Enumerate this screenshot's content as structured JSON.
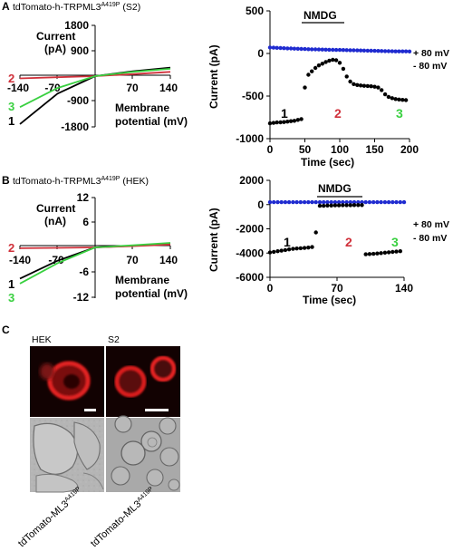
{
  "panels": {
    "A": {
      "letter": "A",
      "title_main": "tdTomato-h-TRPML3",
      "title_sup": "A419P",
      "title_suffix": " (S2)",
      "iv": {
        "ylabel1": "Current",
        "ylabel2": "(pA)",
        "xlabel1": "Membrane",
        "xlabel2": "potential (mV)",
        "yticks": [
          "1800",
          "900",
          "-900",
          "-1800"
        ],
        "xticks": [
          "-140",
          "-70",
          "70",
          "140"
        ],
        "trace_labels": [
          "2",
          "3",
          "1"
        ]
      },
      "time": {
        "ylabel": "Current (pA)",
        "xlabel": "Time (sec)",
        "yticks": [
          "500",
          "0",
          "-500",
          "-1000"
        ],
        "xticks": [
          "0",
          "50",
          "100",
          "150",
          "200"
        ],
        "nmdg": "NMDG",
        "pos_label": "+ 80 mV",
        "neg_label": "- 80 mV",
        "point_labels": [
          "1",
          "2",
          "3"
        ]
      }
    },
    "B": {
      "letter": "B",
      "title_main": "tdTomato-h-TRPML3",
      "title_sup": "A419P",
      "title_suffix": " (HEK)",
      "iv": {
        "ylabel1": "Current",
        "ylabel2": "(nA)",
        "xlabel1": "Membrane",
        "xlabel2": "potential (mV)",
        "yticks": [
          "12",
          "6",
          "-6",
          "-12"
        ],
        "xticks": [
          "-140",
          "-70",
          "70",
          "140"
        ],
        "trace_labels": [
          "2",
          "1",
          "3"
        ]
      },
      "time": {
        "ylabel": "Current (pA)",
        "xlabel": "Time (sec)",
        "yticks": [
          "2000",
          "0",
          "-2000",
          "-4000",
          "-6000"
        ],
        "xticks": [
          "0",
          "70",
          "140"
        ],
        "nmdg": "NMDG",
        "pos_label": "+ 80 mV",
        "neg_label": "- 80 mV",
        "point_labels": [
          "1",
          "2",
          "3"
        ]
      }
    },
    "C": {
      "letter": "C",
      "col_labels": [
        "HEK",
        "S2"
      ],
      "rot_main": "tdTomato-ML3",
      "rot_sup": "A419P"
    }
  },
  "colors": {
    "black": "#000000",
    "red": "#d0313b",
    "green": "#39d040",
    "blue": "#1f2bd0"
  },
  "chart_data": [
    {
      "type": "line",
      "panel": "A-iv",
      "xlabel": "Membrane potential (mV)",
      "ylabel": "Current (pA)",
      "xlim": [
        -140,
        140
      ],
      "ylim": [
        -1800,
        1800
      ],
      "series": [
        {
          "name": "1",
          "x": [
            -140,
            -70,
            0,
            70,
            140
          ],
          "y": [
            -1700,
            -620,
            0,
            170,
            300
          ]
        },
        {
          "name": "2",
          "x": [
            -140,
            -70,
            0,
            70,
            140
          ],
          "y": [
            -80,
            -40,
            0,
            70,
            150
          ]
        },
        {
          "name": "3",
          "x": [
            -140,
            -70,
            0,
            70,
            140
          ],
          "y": [
            -1100,
            -420,
            0,
            150,
            260
          ]
        }
      ]
    },
    {
      "type": "scatter",
      "panel": "A-time",
      "xlabel": "Time (sec)",
      "ylabel": "Current (pA)",
      "xlim": [
        0,
        200
      ],
      "ylim": [
        -1000,
        500
      ],
      "series": [
        {
          "name": "+ 80 mV",
          "x": [
            0,
            5,
            10,
            15,
            20,
            25,
            30,
            35,
            40,
            45,
            50,
            55,
            60,
            65,
            70,
            75,
            80,
            85,
            90,
            95,
            100,
            105,
            110,
            115,
            120,
            125,
            130,
            135,
            140,
            145,
            150,
            155,
            160,
            165,
            170,
            175,
            180,
            185,
            190,
            195,
            200
          ],
          "y": [
            70,
            68,
            66,
            64,
            62,
            60,
            58,
            56,
            55,
            53,
            52,
            50,
            49,
            48,
            47,
            46,
            45,
            44,
            43,
            42,
            41,
            40,
            39,
            38,
            37,
            36,
            35,
            34,
            33,
            32,
            31,
            30,
            29,
            28,
            27,
            26,
            25,
            25,
            24,
            24,
            23
          ]
        },
        {
          "name": "- 80 mV",
          "x": [
            0,
            5,
            10,
            15,
            20,
            25,
            30,
            35,
            40,
            45,
            50,
            55,
            60,
            65,
            70,
            75,
            80,
            85,
            90,
            95,
            100,
            105,
            110,
            115,
            120,
            125,
            130,
            135,
            140,
            145,
            150,
            155,
            160,
            165,
            170,
            175,
            180,
            185,
            190,
            195
          ],
          "y": [
            -820,
            -815,
            -810,
            -808,
            -805,
            -800,
            -795,
            -790,
            -780,
            -770,
            -400,
            -250,
            -210,
            -170,
            -140,
            -120,
            -100,
            -85,
            -75,
            -80,
            -110,
            -180,
            -270,
            -330,
            -360,
            -370,
            -375,
            -380,
            -382,
            -385,
            -390,
            -400,
            -430,
            -480,
            -510,
            -525,
            -535,
            -540,
            -545,
            -548
          ]
        }
      ]
    },
    {
      "type": "line",
      "panel": "B-iv",
      "xlabel": "Membrane potential (mV)",
      "ylabel": "Current (nA)",
      "xlim": [
        -140,
        140
      ],
      "ylim": [
        -12,
        12
      ],
      "series": [
        {
          "name": "1",
          "x": [
            -140,
            -70,
            0,
            70,
            140
          ],
          "y": [
            -7.5,
            -3.2,
            0,
            0.4,
            0.9
          ]
        },
        {
          "name": "2",
          "x": [
            -140,
            -70,
            0,
            70,
            140
          ],
          "y": [
            -0.2,
            -0.1,
            0,
            0.3,
            0.7
          ]
        },
        {
          "name": "3",
          "x": [
            -140,
            -70,
            0,
            70,
            140
          ],
          "y": [
            -8.7,
            -3.8,
            0,
            0.5,
            1.1
          ]
        }
      ]
    },
    {
      "type": "scatter",
      "panel": "B-time",
      "xlabel": "Time (sec)",
      "ylabel": "Current (pA)",
      "xlim": [
        0,
        140
      ],
      "ylim": [
        -6000,
        2000
      ],
      "series": [
        {
          "name": "+ 80 mV",
          "x": [
            0,
            4,
            8,
            12,
            16,
            20,
            24,
            28,
            32,
            36,
            40,
            44,
            48,
            52,
            56,
            60,
            64,
            68,
            72,
            76,
            80,
            84,
            88,
            92,
            96,
            100,
            104,
            108,
            112,
            116,
            120,
            124,
            128,
            132,
            136,
            140
          ],
          "y": [
            200,
            200,
            200,
            200,
            200,
            200,
            200,
            200,
            200,
            200,
            200,
            200,
            200,
            200,
            200,
            200,
            200,
            200,
            200,
            200,
            200,
            200,
            200,
            200,
            200,
            200,
            200,
            200,
            200,
            200,
            200,
            200,
            200,
            200,
            200,
            200
          ]
        },
        {
          "name": "- 80 mV",
          "x": [
            0,
            4,
            8,
            12,
            16,
            20,
            24,
            28,
            32,
            36,
            40,
            44,
            48,
            52,
            56,
            60,
            64,
            68,
            72,
            76,
            80,
            84,
            88,
            92,
            96,
            100,
            104,
            108,
            112,
            116,
            120,
            124,
            128,
            132,
            136
          ],
          "y": [
            -3950,
            -3900,
            -3850,
            -3800,
            -3750,
            -3700,
            -3650,
            -3620,
            -3600,
            -3580,
            -3550,
            -3500,
            -2300,
            -100,
            -100,
            -80,
            -80,
            -60,
            -60,
            -50,
            -50,
            -50,
            -40,
            -40,
            -40,
            -4100,
            -4080,
            -4060,
            -4030,
            -4000,
            -3970,
            -3940,
            -3910,
            -3880,
            -3850
          ]
        }
      ]
    }
  ]
}
